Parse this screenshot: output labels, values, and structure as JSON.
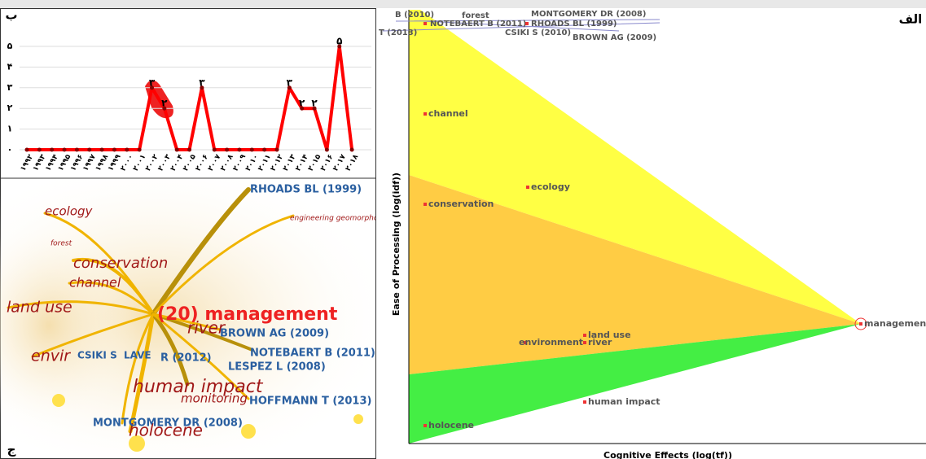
{
  "chart_data": {
    "type": "line",
    "color": "#ff0000",
    "categories": [
      "۱۹۹۲",
      "۱۹۹۳",
      "۱۹۹۴",
      "۱۹۹۵",
      "۱۹۹۶",
      "۱۹۹۷",
      "۱۹۹۸",
      "۱۹۹۹",
      "۲۰۰۰",
      "۲۰۰۱",
      "۲۰۰۲",
      "۲۰۰۳",
      "۲۰۰۴",
      "۲۰۰۵",
      "۲۰۰۶",
      "۲۰۰۷",
      "۲۰۰۸",
      "۲۰۰۹",
      "۲۰۱۰",
      "۲۰۱۱",
      "۲۰۱۲",
      "۲۰۱۳",
      "۲۰۱۴",
      "۲۰۱۵",
      "۲۰۱۶",
      "۲۰۱۷",
      "۲۰۱۸"
    ],
    "values": [
      0,
      0,
      0,
      0,
      0,
      0,
      0,
      0,
      0,
      0,
      3,
      2,
      0,
      0,
      3,
      0,
      0,
      0,
      0,
      0,
      0,
      3,
      2,
      2,
      0,
      5,
      0
    ],
    "value_labels": [
      null,
      null,
      null,
      null,
      null,
      null,
      null,
      null,
      null,
      null,
      "۳",
      "۲",
      null,
      null,
      "۳",
      null,
      null,
      null,
      null,
      null,
      null,
      "۳",
      "۲",
      "۲",
      null,
      "۵",
      null
    ],
    "ylim": [
      0,
      5
    ],
    "yticks": [
      {
        "value": 0,
        "label": "۰"
      },
      {
        "value": 1,
        "label": "۱"
      },
      {
        "value": 2,
        "label": "۲"
      },
      {
        "value": 3,
        "label": "۳"
      },
      {
        "value": 4,
        "label": "۴"
      },
      {
        "value": 5,
        "label": "۵"
      }
    ],
    "grid": true
  },
  "panels": {
    "line": "ب",
    "scatter": "الف",
    "network": "ج"
  },
  "scatter": {
    "x_label": "Cognitive Effects (log(tf))",
    "y_label": "Ease of Processing (log(idf))",
    "points": [
      "channel",
      "ecology",
      "conservation",
      "land use",
      "environment",
      "river",
      "human impact",
      "holocene",
      "management"
    ],
    "top_labels": [
      "B (2010)",
      "forest",
      "MONTGOMERY DR (2008)",
      "NOTEBAERT B (2011)",
      "RHOADS BL (1999)",
      "T (2013)",
      "CSIKI S (2010)",
      "BROWN AG (2009)"
    ]
  },
  "network": {
    "labels": [
      "ecology",
      "forest",
      "conservation",
      "channel",
      "land use",
      "envir",
      "human impact",
      "monitoring",
      "holocene",
      "river",
      "(20) management",
      "engineering geomorpholo",
      "RHOADS BL (1999)",
      "BROWN AG (2009)",
      "NOTEBAERT B (2011)",
      "LESPEZ L (2008)",
      "HOFFMANN T (2013)",
      "MONTGOMERY DR (2008)",
      "CSIKI S",
      "LAVE",
      "R (2012)"
    ]
  }
}
